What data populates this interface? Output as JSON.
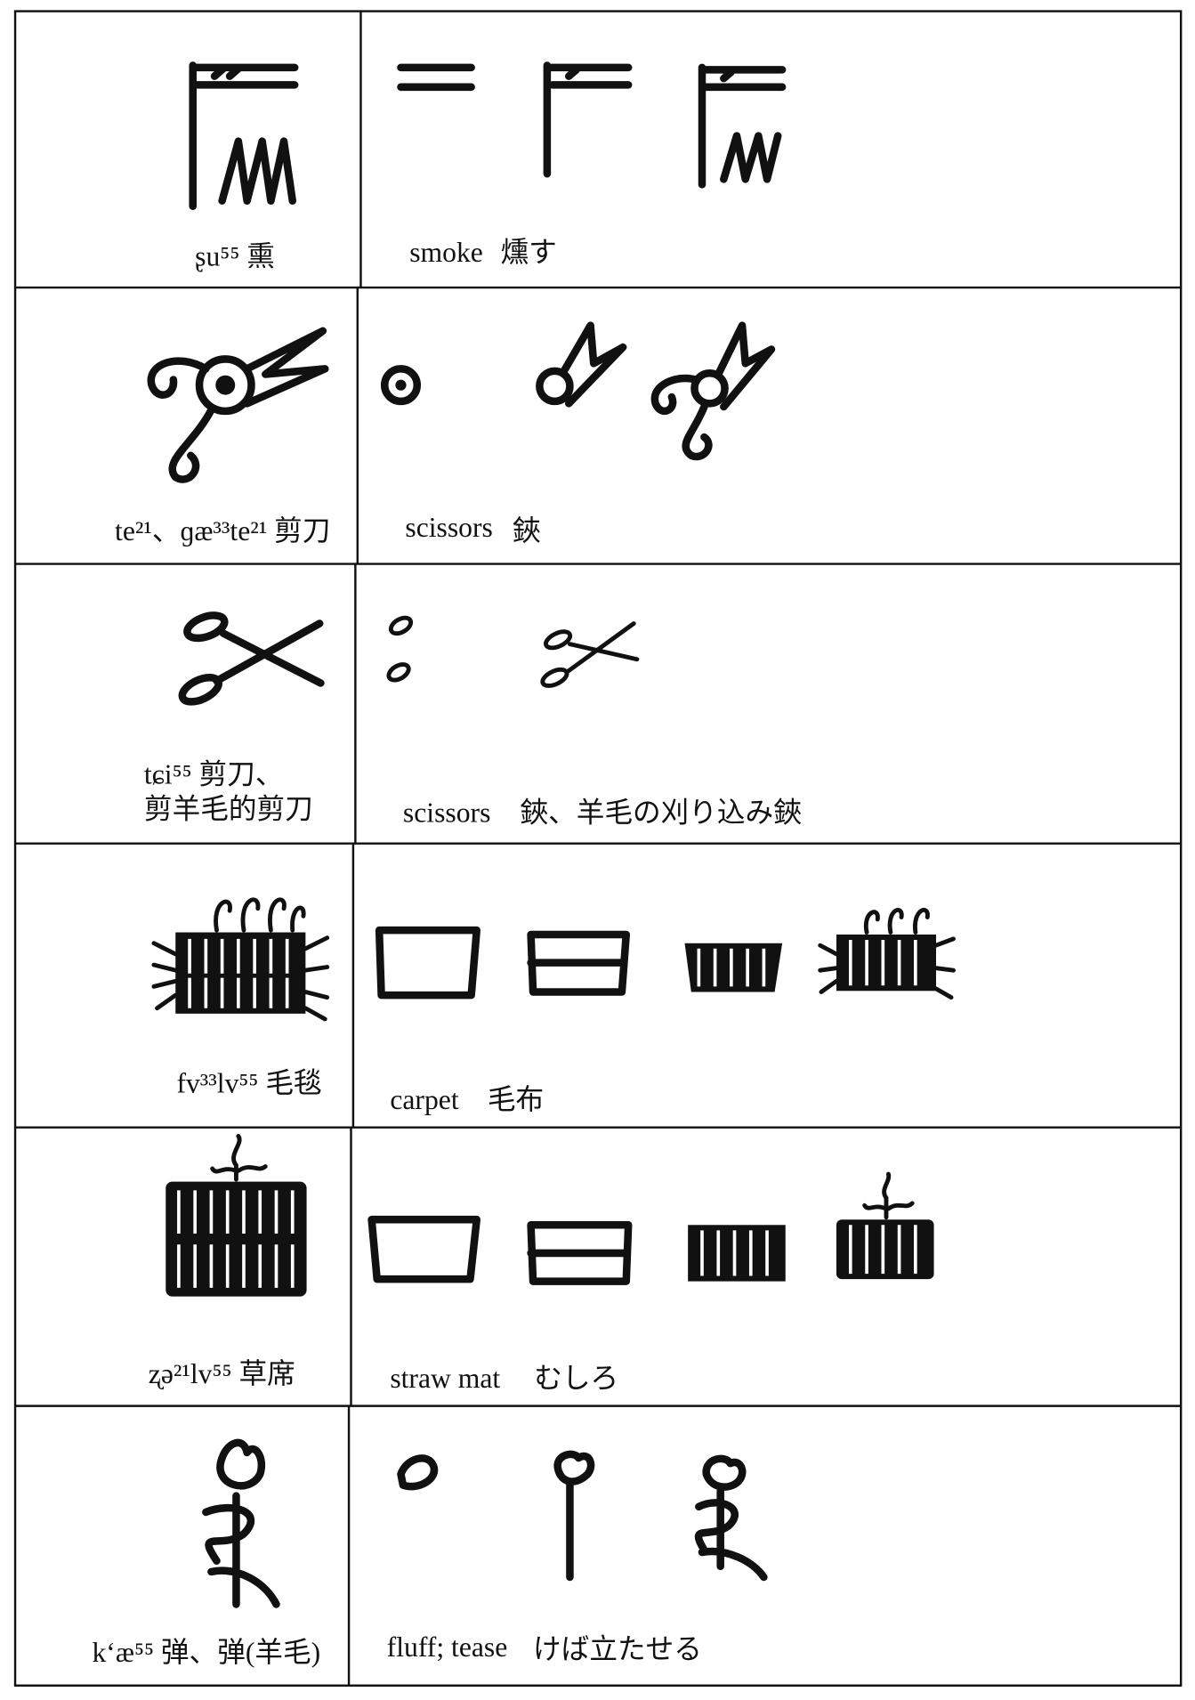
{
  "rows": [
    {
      "reading": "ʂu⁵⁵ 熏",
      "gloss": "smoke",
      "japanese": "燻す"
    },
    {
      "reading": "te²¹、ɡæ³³te²¹ 剪刀",
      "gloss": "scissors",
      "japanese": "鋏"
    },
    {
      "reading": [
        "tɕi⁵⁵ 剪刀、",
        "剪羊毛的剪刀"
      ],
      "gloss": "scissors",
      "japanese": "鋏、羊毛の刈り込み鋏"
    },
    {
      "reading": "fv³³lv⁵⁵ 毛毯",
      "gloss": "carpet",
      "japanese": "毛布"
    },
    {
      "reading": "ʐə²¹lv⁵⁵ 草席",
      "gloss": "straw mat",
      "japanese": "むしろ"
    },
    {
      "reading": "kʻæ⁵⁵ 弹、弹(羊毛)",
      "gloss": "fluff; tease",
      "japanese": "けば立たせる"
    }
  ]
}
